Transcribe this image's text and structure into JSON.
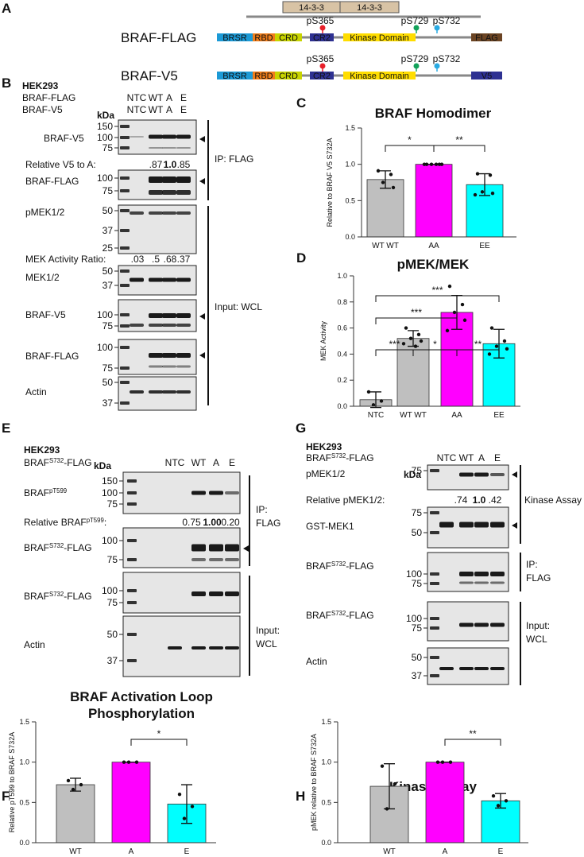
{
  "panel_a": {
    "panel_label": "A",
    "binding_partners": [
      "14-3-3",
      "14-3-3"
    ],
    "constructs": [
      {
        "name": "BRAF-FLAG",
        "domains": [
          "BRSR",
          "RBD",
          "CRD",
          "CR2",
          "Kinase Domain",
          "FLAG"
        ],
        "sites": [
          "pS365",
          "pS729",
          "pS732"
        ]
      },
      {
        "name": "BRAF-V5",
        "domains": [
          "BRSR",
          "RBD",
          "CRD",
          "CR2",
          "Kinase Domain",
          "V5"
        ],
        "sites": [
          "pS365",
          "pS729",
          "pS732"
        ]
      }
    ]
  },
  "panel_b": {
    "panel_label": "B",
    "cell_line": "HEK293",
    "constructs": [
      "BRAF-FLAG",
      "BRAF-V5"
    ],
    "lanes": [
      [
        "NTC",
        "WT",
        "A",
        "E"
      ],
      [
        "NTC",
        "WT",
        "A",
        "E"
      ]
    ],
    "kda": "kDa",
    "blots": [
      {
        "label": "BRAF-V5",
        "markers": [
          150,
          100,
          75
        ]
      },
      {
        "label": "BRAF-FLAG",
        "markers": [
          100,
          75
        ]
      },
      {
        "label": "pMEK1/2",
        "markers": [
          50,
          37,
          25
        ]
      },
      {
        "label": "MEK1/2",
        "markers": [
          50,
          37
        ]
      },
      {
        "label": "BRAF-V5",
        "markers": [
          100,
          75
        ]
      },
      {
        "label": "BRAF-FLAG",
        "markers": [
          100,
          75
        ]
      },
      {
        "label": "Actin",
        "markers": [
          50,
          37
        ]
      }
    ],
    "quant": [
      {
        "label": "Relative V5 to A:",
        "values": [
          ".87",
          "1.0",
          ".85"
        ]
      },
      {
        "label": "MEK Activity Ratio:",
        "values": [
          ".03",
          ".5",
          ".68",
          ".37"
        ]
      }
    ],
    "groups": [
      [
        "IP: FLAG"
      ],
      [
        "Input: WCL"
      ]
    ]
  },
  "panel_e": {
    "panel_label": "E",
    "cell_line": "HEK293",
    "constructs": [
      {
        "text": "BRAF",
        "sup": "S732",
        "suffix": "-FLAG"
      }
    ],
    "lanes": [
      [
        "NTC",
        "WT",
        "A",
        "E"
      ]
    ],
    "kda": "kDa",
    "blots": [
      {
        "label": {
          "text": "BRAF",
          "sup": "pT599"
        },
        "markers": [
          150,
          100,
          75
        ]
      },
      {
        "label": {
          "text": "BRAF",
          "sup": "S732",
          "suffix": "-FLAG"
        },
        "markers": [
          100,
          75
        ]
      },
      {
        "label": {
          "text": "BRAF",
          "sup": "S732",
          "suffix": "-FLAG"
        },
        "markers": [
          100,
          75
        ]
      },
      {
        "label": "Actin",
        "markers": [
          50,
          37
        ]
      }
    ],
    "quant": [
      {
        "label": {
          "text": "Relative BRAF",
          "sup": "pT599",
          "suffix": ":"
        },
        "values": [
          "0.75",
          "1.00",
          "0.20"
        ]
      }
    ],
    "groups": [
      [
        "IP:",
        "FLAG"
      ],
      [
        "Input:",
        "WCL"
      ]
    ]
  },
  "panel_g": {
    "panel_label": "G",
    "cell_line": "HEK293",
    "constructs": [
      {
        "text": "BRAF",
        "sup": "S732",
        "suffix": "-FLAG"
      }
    ],
    "lanes": [
      [
        "NTC",
        "WT",
        "A",
        "E"
      ]
    ],
    "kda": "kDa",
    "blots": [
      {
        "label": "pMEK1/2",
        "markers": [
          75
        ]
      },
      {
        "label": "GST-MEK1",
        "markers": [
          75,
          50
        ]
      },
      {
        "label": {
          "text": "BRAF",
          "sup": "S732",
          "suffix": "-FLAG"
        },
        "markers": [
          100,
          75
        ]
      },
      {
        "label": {
          "text": "BRAF",
          "sup": "S732",
          "suffix": "-FLAG"
        },
        "markers": [
          100,
          75
        ]
      },
      {
        "label": "Actin",
        "markers": [
          50,
          37
        ]
      }
    ],
    "quant": [
      {
        "label": "Relative pMEK1/2:",
        "values": [
          ".74",
          "1.0",
          ".42"
        ]
      }
    ],
    "groups": [
      [
        "Kinase Assay"
      ],
      [
        "IP:",
        "FLAG"
      ],
      [
        "Input:",
        "WCL"
      ]
    ]
  },
  "chart_data": [
    {
      "type": "bar",
      "panel_label": "C",
      "title": [
        "BRAF Homodimer"
      ],
      "y_label": "Relative to BRAF V5 S732A",
      "categories": [
        "WT WT",
        "AA",
        "EE"
      ],
      "values": [
        0.79,
        1.0,
        0.72
      ],
      "errors": [
        0.12,
        0,
        0.15
      ],
      "points": [
        [
          0.91,
          0.86,
          0.75,
          0.68
        ],
        [
          1,
          1,
          1,
          1,
          1,
          1
        ],
        [
          0.87,
          0.85,
          0.62,
          0.6,
          0.58
        ]
      ],
      "colors": [
        "#bfbfbf",
        "#ff00ff",
        "#00ffff"
      ],
      "ylim": [
        0,
        1.5
      ],
      "yticks": [
        {
          "value": 0,
          "label": "0.0"
        },
        0.5,
        {
          "value": 1,
          "label": "1.0"
        },
        1.5
      ],
      "annotations": [
        "*",
        "**"
      ]
    },
    {
      "type": "bar",
      "panel_label": "D",
      "title": [
        "pMEK/MEK"
      ],
      "y_label": "MEK Activity",
      "categories": [
        "NTC",
        "WT WT",
        "AA",
        "EE"
      ],
      "values": [
        0.05,
        0.52,
        0.72,
        0.48
      ],
      "errors": [
        0.06,
        0.06,
        0.13,
        0.11
      ],
      "points": [
        [
          0.11,
          0.04,
          0.01
        ],
        [
          0.6,
          0.55,
          0.52,
          0.5,
          0.48,
          0.46
        ],
        [
          0.92,
          0.78,
          0.72,
          0.66,
          0.58
        ],
        [
          0.6,
          0.5,
          0.46,
          0.44,
          0.4
        ]
      ],
      "colors": [
        "#bfbfbf",
        "#bfbfbf",
        "#ff00ff",
        "#00ffff"
      ],
      "ylim": [
        0,
        1
      ],
      "yticks": [
        {
          "value": 0,
          "label": "0.0"
        },
        0.2,
        0.4,
        0.6,
        0.8,
        {
          "value": 1,
          "label": "1.0"
        }
      ],
      "annotations": [
        "***",
        "***",
        "***",
        "*",
        "**"
      ]
    },
    {
      "type": "bar",
      "panel_label": "F",
      "title": [
        "BRAF Activation Loop",
        "Phosphorylation"
      ],
      "y_label": "Relative pT599 to BRAF S732A",
      "categories": [
        "WT",
        "A",
        "E"
      ],
      "values": [
        0.72,
        1.0,
        0.48
      ],
      "errors": [
        0.08,
        0,
        0.24
      ],
      "points": [
        [
          0.77,
          0.72,
          0.66
        ],
        [
          1,
          1,
          1
        ],
        [
          0.6,
          0.45,
          0.3
        ]
      ],
      "colors": [
        "#bfbfbf",
        "#ff00ff",
        "#00ffff"
      ],
      "ylim": [
        0,
        1.5
      ],
      "yticks": [
        {
          "value": 0,
          "label": "0.0"
        },
        0.5,
        {
          "value": 1,
          "label": "1.0"
        },
        1.5
      ],
      "annotations": [
        "*"
      ]
    },
    {
      "type": "bar",
      "panel_label": "H",
      "title": [
        "Kinase Assay"
      ],
      "y_label": "pMEK relative to BRAF S732A",
      "categories": [
        "WT",
        "A",
        "E"
      ],
      "values": [
        0.7,
        1.0,
        0.52
      ],
      "errors": [
        0.28,
        0,
        0.09
      ],
      "points": [
        [
          0.95,
          0.73,
          0.42
        ],
        [
          1,
          1,
          1
        ],
        [
          0.58,
          0.52,
          0.46
        ]
      ],
      "colors": [
        "#bfbfbf",
        "#ff00ff",
        "#00ffff"
      ],
      "ylim": [
        0,
        1.5
      ],
      "yticks": [
        {
          "value": 0,
          "label": "0.0"
        },
        0.5,
        {
          "value": 1,
          "label": "1.0"
        },
        1.5
      ],
      "annotations": [
        "**"
      ]
    }
  ]
}
